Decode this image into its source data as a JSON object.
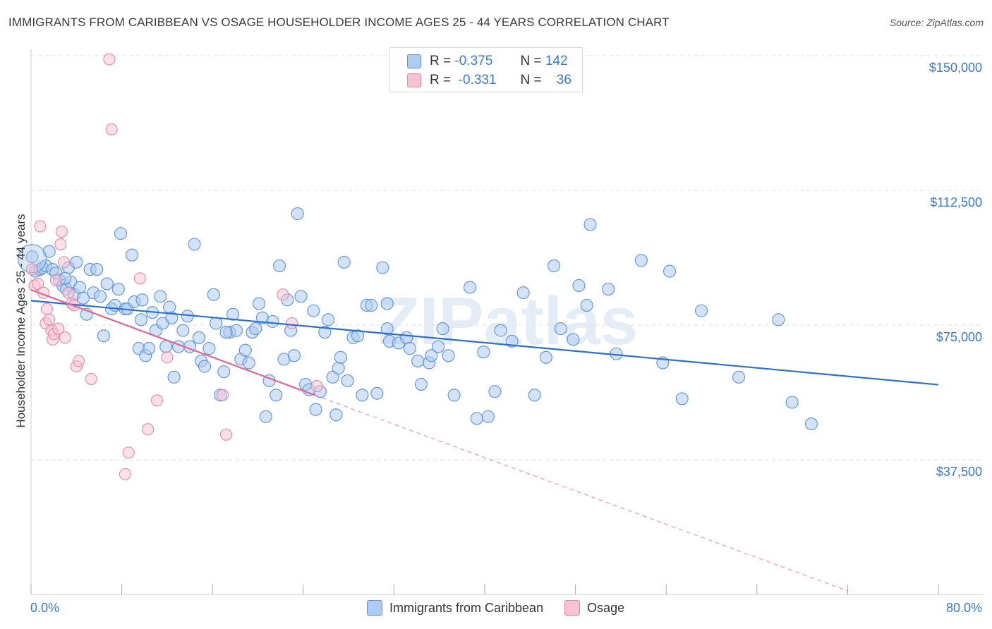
{
  "title": "IMMIGRANTS FROM CARIBBEAN VS OSAGE HOUSEHOLDER INCOME AGES 25 - 44 YEARS CORRELATION CHART",
  "source": "Source: ZipAtlas.com",
  "watermark": "ZIPatlas",
  "legend_top": {
    "rows": [
      {
        "r_label": "R =",
        "r_value": "-0.375",
        "n_label": "N =",
        "n_value": "142"
      },
      {
        "r_label": "R =",
        "r_value": "-0.331",
        "n_label": "N =",
        "n_value": "36"
      }
    ]
  },
  "colors": {
    "blue_fill": "#aecbf0",
    "blue_stroke": "#5b93d9",
    "blue_line": "#2a6fd1",
    "pink_fill": "#f7c2d2",
    "pink_stroke": "#e389a7",
    "pink_line": "#e0678f",
    "axis_text": "#3a78d4",
    "grid": "#dddddd"
  },
  "chart_data": {
    "type": "scatter",
    "title": "IMMIGRANTS FROM CARIBBEAN VS OSAGE HOUSEHOLDER INCOME AGES 25 - 44 YEARS CORRELATION CHART",
    "xlabel": "",
    "ylabel": "Householder Income Ages 25 - 44 years",
    "xlim": [
      0,
      80
    ],
    "ylim": [
      0,
      157000
    ],
    "x_tick_labels": [
      "0.0%",
      "80.0%"
    ],
    "y_ticks": [
      37500,
      75000,
      112500,
      150000
    ],
    "y_tick_labels": [
      "$37,500",
      "$75,000",
      "$112,500",
      "$150,000"
    ],
    "grid": true,
    "legend_position": "bottom",
    "series": [
      {
        "name": "Immigrants from Caribbean",
        "r": -0.375,
        "n": 142,
        "trend": {
          "x": [
            0,
            80
          ],
          "y": [
            81800,
            58400
          ]
        },
        "points": [
          [
            0.1,
            94000
          ],
          [
            0.4,
            90000
          ],
          [
            0.8,
            90500
          ],
          [
            1.0,
            91000
          ],
          [
            1.3,
            91500
          ],
          [
            1.6,
            95500
          ],
          [
            1.9,
            90500
          ],
          [
            2.2,
            89500
          ],
          [
            2.5,
            87500
          ],
          [
            2.8,
            86000
          ],
          [
            3.1,
            85000
          ],
          [
            3.3,
            91000
          ],
          [
            3.5,
            87000
          ],
          [
            3.8,
            83500
          ],
          [
            4.0,
            92500
          ],
          [
            4.3,
            85500
          ],
          [
            4.6,
            82500
          ],
          [
            4.9,
            78000
          ],
          [
            5.2,
            90500
          ],
          [
            5.5,
            84000
          ],
          [
            5.8,
            90500
          ],
          [
            6.1,
            83000
          ],
          [
            6.4,
            72000
          ],
          [
            6.7,
            86500
          ],
          [
            7.1,
            79500
          ],
          [
            7.4,
            80500
          ],
          [
            7.7,
            85000
          ],
          [
            7.9,
            100500
          ],
          [
            8.3,
            79500
          ],
          [
            8.5,
            79500
          ],
          [
            8.9,
            94500
          ],
          [
            9.1,
            81500
          ],
          [
            9.5,
            68500
          ],
          [
            9.7,
            76500
          ],
          [
            10.1,
            66500
          ],
          [
            10.4,
            68500
          ],
          [
            10.7,
            78500
          ],
          [
            11.0,
            73500
          ],
          [
            11.4,
            83000
          ],
          [
            11.6,
            75500
          ],
          [
            11.9,
            69000
          ],
          [
            12.2,
            80000
          ],
          [
            12.4,
            77000
          ],
          [
            12.6,
            60500
          ],
          [
            13.0,
            69000
          ],
          [
            13.4,
            73500
          ],
          [
            13.8,
            77500
          ],
          [
            14.0,
            69000
          ],
          [
            14.4,
            97500
          ],
          [
            14.8,
            71500
          ],
          [
            15.0,
            65000
          ],
          [
            15.3,
            63500
          ],
          [
            15.7,
            68500
          ],
          [
            16.1,
            83500
          ],
          [
            16.3,
            75500
          ],
          [
            16.7,
            55500
          ],
          [
            17.0,
            62000
          ],
          [
            17.5,
            73000
          ],
          [
            17.8,
            78000
          ],
          [
            18.1,
            73500
          ],
          [
            18.5,
            65500
          ],
          [
            18.9,
            68000
          ],
          [
            19.2,
            64500
          ],
          [
            19.5,
            73000
          ],
          [
            19.8,
            74000
          ],
          [
            20.1,
            81000
          ],
          [
            20.4,
            77000
          ],
          [
            20.7,
            49500
          ],
          [
            21.0,
            59500
          ],
          [
            21.3,
            76000
          ],
          [
            21.6,
            55500
          ],
          [
            21.9,
            91500
          ],
          [
            22.3,
            65500
          ],
          [
            22.6,
            82000
          ],
          [
            22.9,
            73500
          ],
          [
            23.2,
            66500
          ],
          [
            23.5,
            106000
          ],
          [
            23.8,
            83000
          ],
          [
            24.2,
            58500
          ],
          [
            24.5,
            57000
          ],
          [
            24.9,
            79000
          ],
          [
            25.1,
            51500
          ],
          [
            25.5,
            56500
          ],
          [
            25.9,
            73000
          ],
          [
            26.2,
            76500
          ],
          [
            26.6,
            60500
          ],
          [
            26.9,
            50000
          ],
          [
            27.1,
            63000
          ],
          [
            27.3,
            66000
          ],
          [
            27.6,
            92500
          ],
          [
            27.9,
            59500
          ],
          [
            28.4,
            71500
          ],
          [
            28.8,
            72000
          ],
          [
            29.2,
            55500
          ],
          [
            29.6,
            80500
          ],
          [
            30.0,
            80500
          ],
          [
            30.5,
            56000
          ],
          [
            31.0,
            91000
          ],
          [
            31.4,
            81000
          ],
          [
            31.6,
            70500
          ],
          [
            32.4,
            70000
          ],
          [
            33.1,
            71500
          ],
          [
            33.4,
            68500
          ],
          [
            34.1,
            65000
          ],
          [
            34.4,
            58500
          ],
          [
            35.1,
            64500
          ],
          [
            35.3,
            66500
          ],
          [
            35.9,
            69000
          ],
          [
            36.3,
            74000
          ],
          [
            36.8,
            66500
          ],
          [
            37.3,
            55500
          ],
          [
            38.7,
            85500
          ],
          [
            39.3,
            49000
          ],
          [
            39.9,
            67500
          ],
          [
            40.3,
            49500
          ],
          [
            40.9,
            56500
          ],
          [
            41.4,
            73500
          ],
          [
            42.4,
            70500
          ],
          [
            43.4,
            84000
          ],
          [
            44.4,
            55500
          ],
          [
            45.4,
            66000
          ],
          [
            46.1,
            91500
          ],
          [
            46.7,
            74000
          ],
          [
            47.8,
            71000
          ],
          [
            48.3,
            86000
          ],
          [
            49.0,
            80500
          ],
          [
            49.3,
            103000
          ],
          [
            50.9,
            85000
          ],
          [
            51.6,
            67000
          ],
          [
            53.8,
            93000
          ],
          [
            55.7,
            64500
          ],
          [
            56.3,
            90000
          ],
          [
            57.4,
            54500
          ],
          [
            59.1,
            79000
          ],
          [
            62.4,
            60500
          ],
          [
            65.9,
            76500
          ],
          [
            67.1,
            53500
          ],
          [
            68.8,
            47500
          ],
          [
            31.4,
            74000
          ],
          [
            17.2,
            73000
          ],
          [
            9.8,
            82000
          ],
          [
            3.0,
            88000
          ]
        ]
      },
      {
        "name": "Osage",
        "r": -0.331,
        "n": 36,
        "trend": {
          "x": [
            0,
            25
          ],
          "y": [
            84800,
            55500
          ]
        },
        "trend_dashed": {
          "x": [
            25,
            72
          ],
          "y": [
            55500,
            1000
          ]
        },
        "points": [
          [
            0.1,
            90500
          ],
          [
            0.3,
            86000
          ],
          [
            0.6,
            86500
          ],
          [
            0.8,
            102500
          ],
          [
            1.1,
            84000
          ],
          [
            1.3,
            75500
          ],
          [
            1.4,
            79500
          ],
          [
            1.6,
            76500
          ],
          [
            1.8,
            73500
          ],
          [
            1.9,
            71000
          ],
          [
            2.0,
            72500
          ],
          [
            2.2,
            87500
          ],
          [
            2.4,
            74000
          ],
          [
            2.6,
            97500
          ],
          [
            2.7,
            101000
          ],
          [
            2.9,
            92500
          ],
          [
            3.0,
            71500
          ],
          [
            3.3,
            84000
          ],
          [
            3.6,
            81000
          ],
          [
            3.8,
            80500
          ],
          [
            4.0,
            63500
          ],
          [
            4.2,
            65000
          ],
          [
            5.3,
            60000
          ],
          [
            6.9,
            149000
          ],
          [
            7.1,
            129500
          ],
          [
            8.3,
            33500
          ],
          [
            8.6,
            39500
          ],
          [
            9.6,
            88000
          ],
          [
            10.3,
            46000
          ],
          [
            11.1,
            54000
          ],
          [
            12.0,
            66000
          ],
          [
            16.9,
            55500
          ],
          [
            17.2,
            44500
          ],
          [
            22.2,
            83500
          ],
          [
            23.0,
            75500
          ],
          [
            25.2,
            58000
          ]
        ]
      }
    ]
  },
  "axes": {
    "y_title": "Householder Income Ages 25 - 44 years",
    "y_labels": [
      "$150,000",
      "$112,500",
      "$75,000",
      "$37,500"
    ],
    "x_left": "0.0%",
    "x_right": "80.0%"
  },
  "legend_bottom": [
    "Immigrants from Caribbean",
    "Osage"
  ]
}
